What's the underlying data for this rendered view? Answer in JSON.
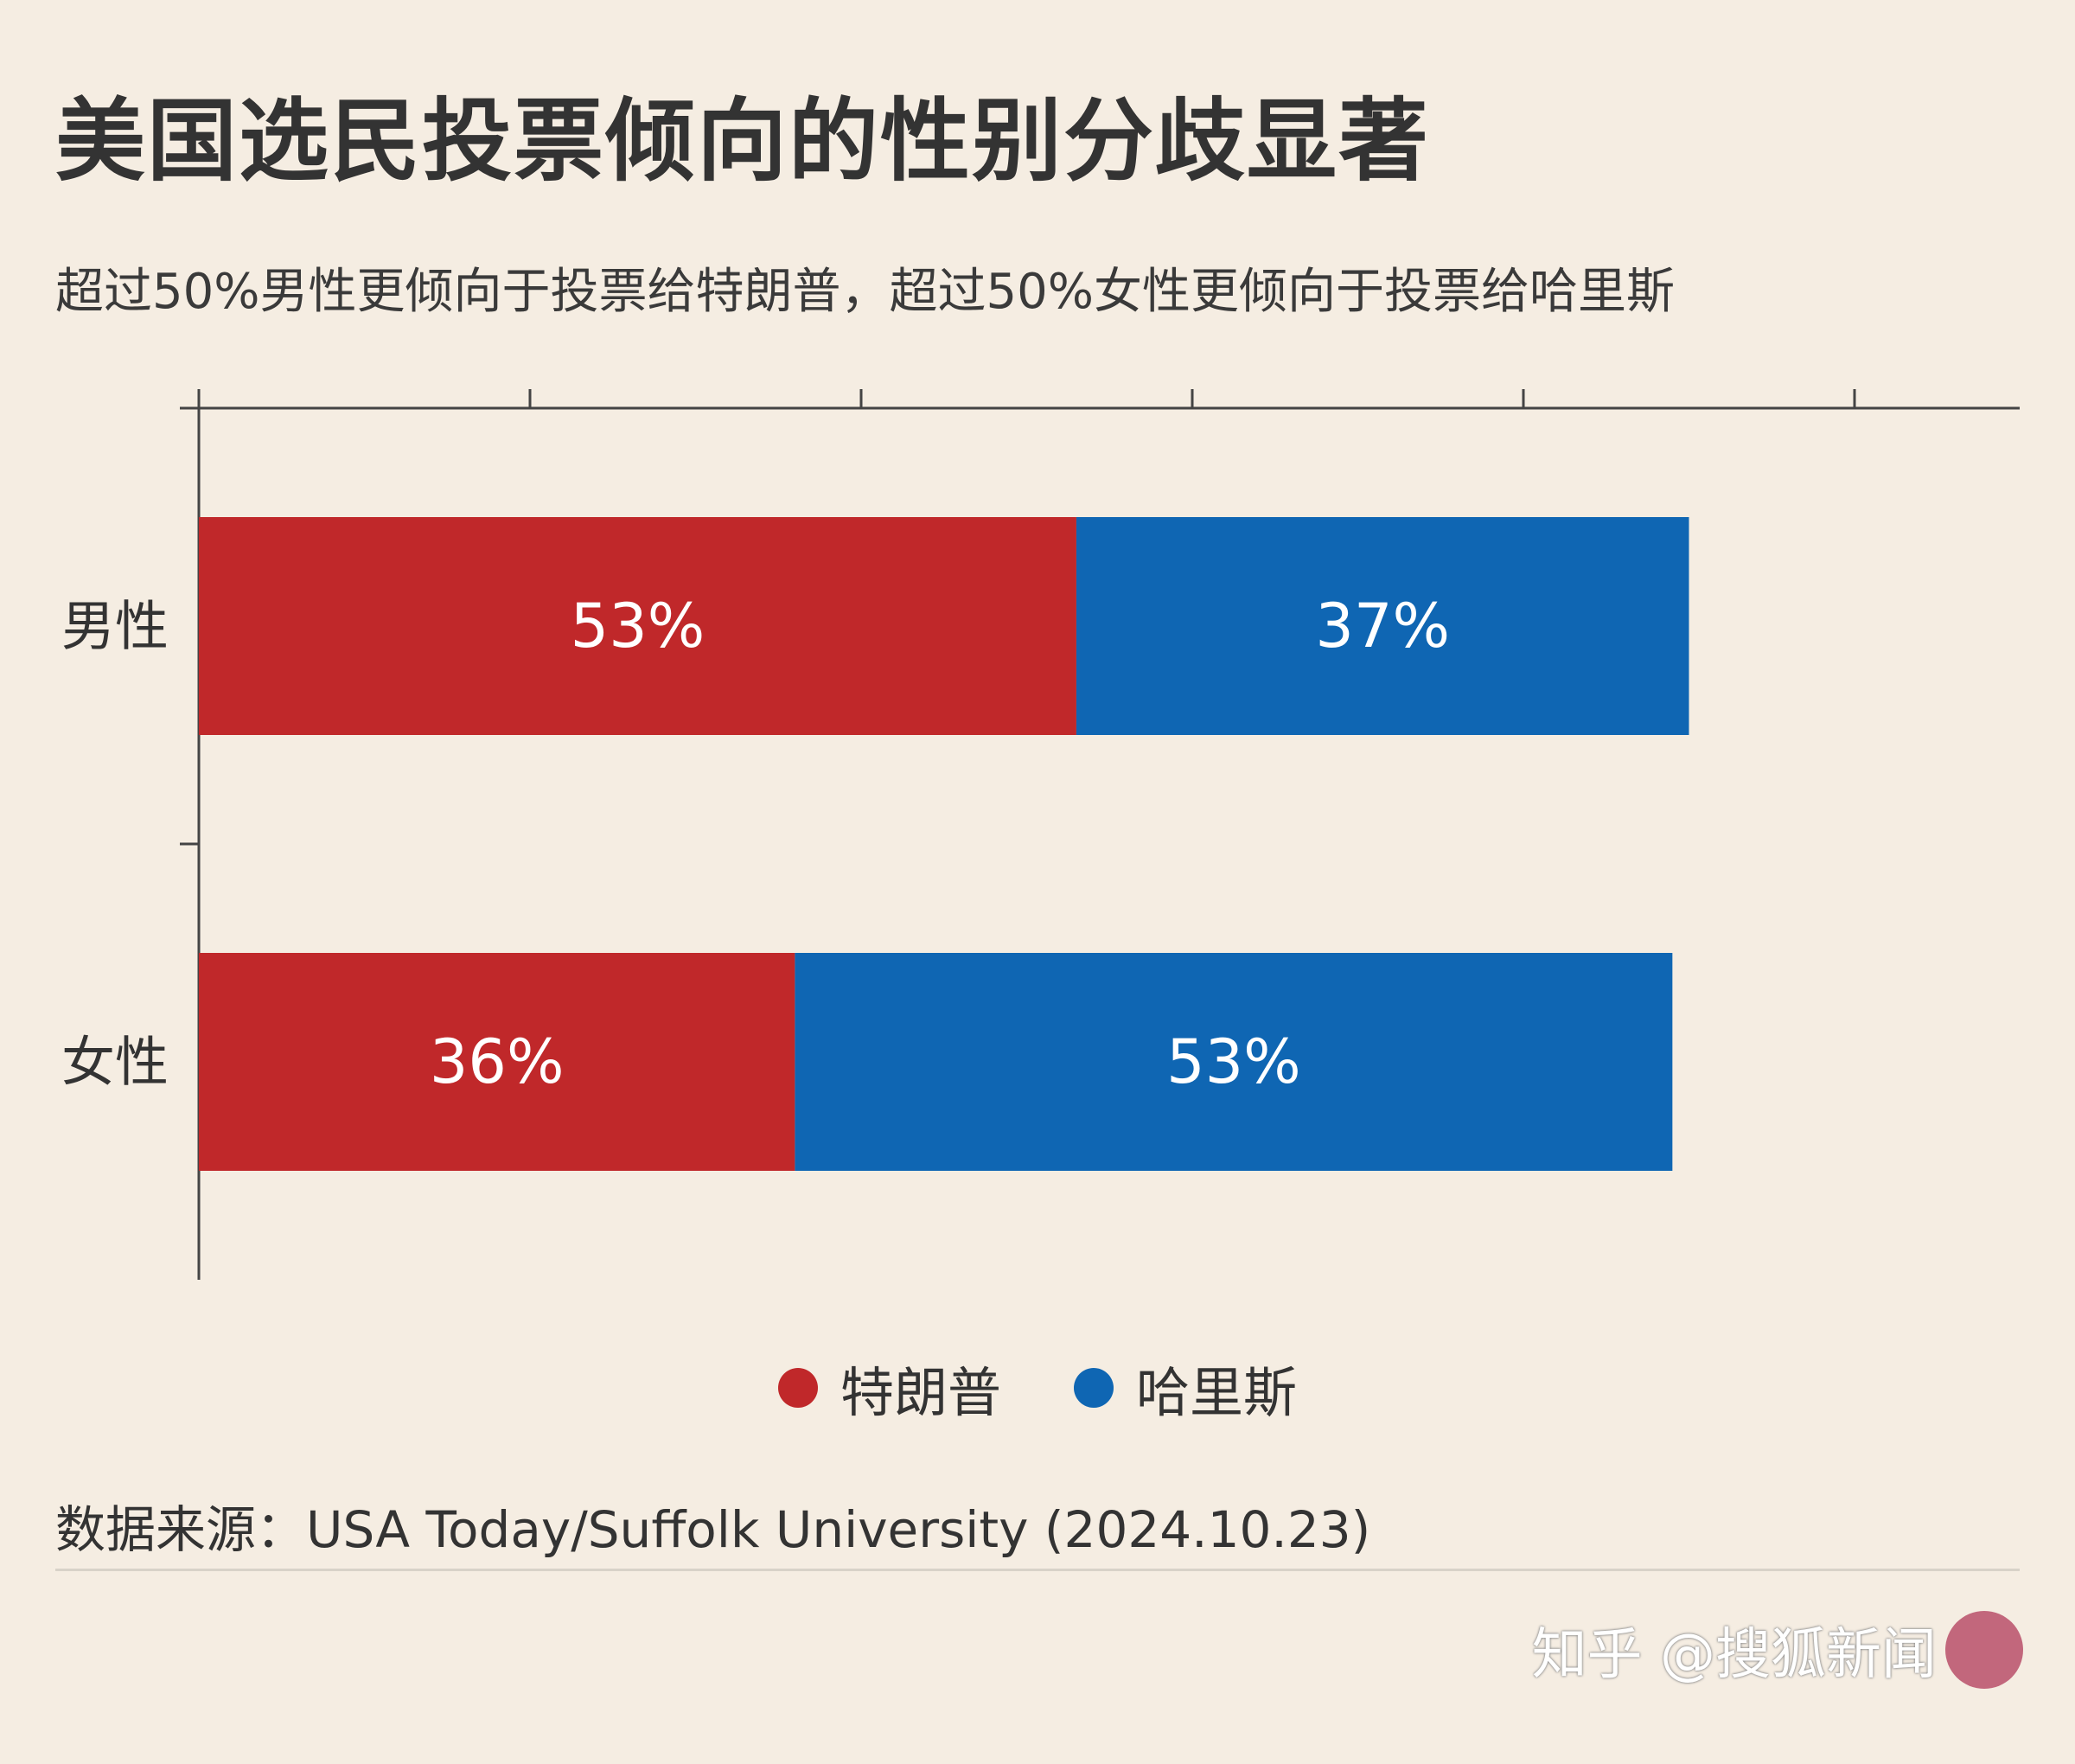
{
  "title": "美国选民投票倾向的性别分歧显著",
  "subtitle": "超过50%男性更倾向于投票给特朗普，超过50%女性更倾向于投票给哈里斯",
  "source": "数据来源：USA Today/Suffolk University (2024.10.23)",
  "watermark": "知乎 @搜狐新闻",
  "colors": {
    "trump": "#c0282a",
    "harris": "#0f66b3",
    "axis": "#444444",
    "background": "#f5ede2"
  },
  "chart_data": {
    "type": "bar",
    "orientation": "horizontal",
    "stacked": true,
    "categories": [
      "男性",
      "女性"
    ],
    "series": [
      {
        "name": "特朗普",
        "values": [
          53,
          36
        ],
        "labels": [
          "53%",
          "36%"
        ]
      },
      {
        "name": "哈里斯",
        "values": [
          37,
          53
        ],
        "labels": [
          "37%",
          "53%"
        ]
      }
    ],
    "xlim": [
      0,
      110
    ],
    "x_tick_step": 20,
    "x_tick_labels_shown": false,
    "grid": false,
    "legend_position": "bottom-center"
  }
}
